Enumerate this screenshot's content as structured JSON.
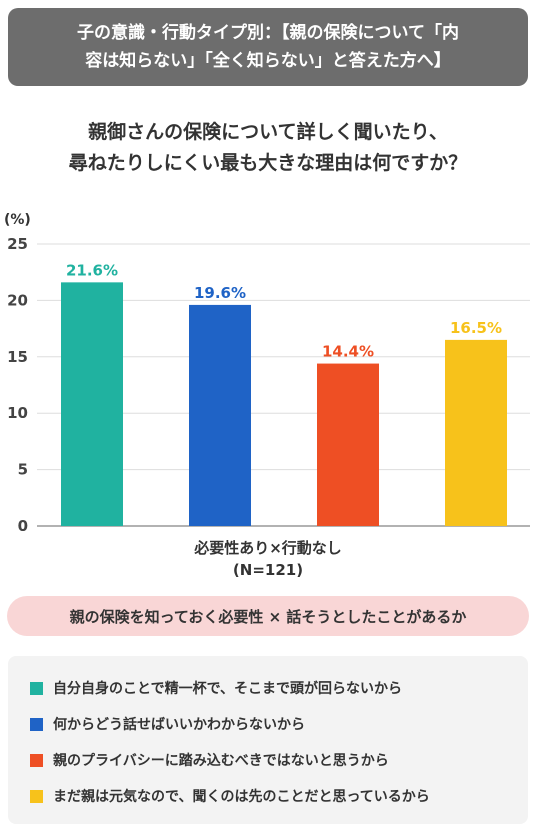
{
  "header": {
    "title": "子の意識・行動タイプ別：【親の保険について「内\n容は知らない」「全く知らない」と答えた方へ】"
  },
  "question": "親御さんの保険について詳しく聞いたり、\n尋ねたりしにくい最も大きな理由は何ですか？",
  "chart_data": {
    "type": "bar",
    "unit_label": "(%)",
    "ylim": [
      0,
      25
    ],
    "yticks": [
      0,
      5,
      10,
      15,
      20,
      25
    ],
    "grid": true,
    "categories": [
      "自分自身のことで精一杯で、そこまで頭が回らないから",
      "何からどう話せばいいかわからないから",
      "親のプライバシーに踏み込むべきではないと思うから",
      "まだ親は元気なので、聞くのは先のことだと思っているから"
    ],
    "values": [
      21.6,
      19.6,
      14.4,
      16.5
    ],
    "value_labels": [
      "21.6%",
      "19.6%",
      "14.4%",
      "16.5%"
    ],
    "colors": [
      "#20b2a0",
      "#1f63c6",
      "#ee4f24",
      "#f7c21b"
    ],
    "group_label": "必要性あり×行動なし\n(N=121)"
  },
  "pill": "親の保険を知っておく必要性 × 話そうとしたことがあるか"
}
